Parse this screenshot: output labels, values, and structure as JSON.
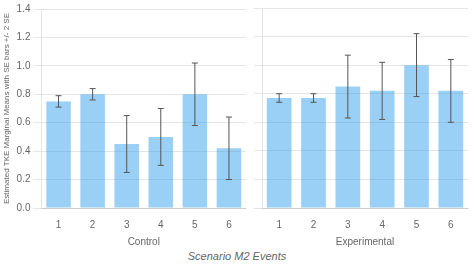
{
  "chart_data": [
    {
      "type": "bar",
      "xlabel": "Control",
      "ylabel": "Estimated TKE Marginal Means with SE bars +/- 2 SE",
      "categories": [
        "1",
        "2",
        "3",
        "4",
        "5",
        "6"
      ],
      "values": [
        0.75,
        0.8,
        0.45,
        0.5,
        0.8,
        0.42
      ],
      "errors": [
        0.04,
        0.04,
        0.2,
        0.2,
        0.22,
        0.22
      ],
      "ylim": [
        0,
        1.4
      ],
      "yticks": [
        {
          "value": 0,
          "label": "0.0"
        },
        0.2,
        0.4,
        0.6,
        0.8,
        {
          "value": 1.0,
          "label": "1.0"
        },
        1.2,
        1.4
      ],
      "grid": true
    },
    {
      "type": "bar",
      "xlabel": "Experimental",
      "categories": [
        "1",
        "2",
        "3",
        "4",
        "5",
        "6"
      ],
      "values": [
        0.77,
        0.77,
        0.85,
        0.82,
        1.0,
        0.82
      ],
      "errors": [
        0.03,
        0.03,
        0.22,
        0.2,
        0.22,
        0.22
      ],
      "ylim": [
        0,
        1.4
      ],
      "yticks": [
        {
          "value": 0,
          "label": "0.0"
        },
        0.2,
        0.4,
        0.6,
        0.8,
        {
          "value": 1.0,
          "label": "1.0"
        },
        1.2,
        1.4
      ],
      "grid": true,
      "tick_labels": "x",
      "annotation": "Scenario M2 Events"
    }
  ]
}
